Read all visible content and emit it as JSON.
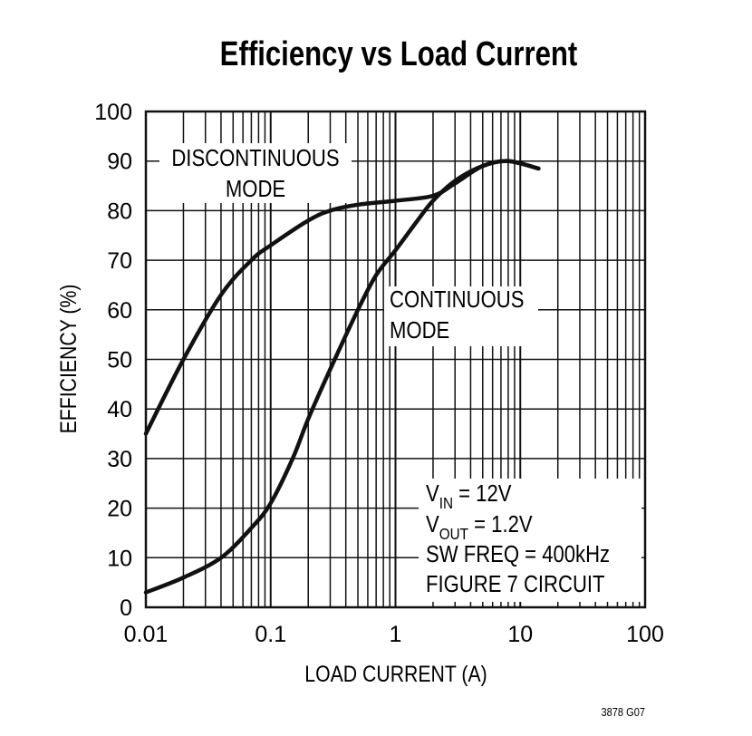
{
  "chart_data": {
    "type": "line",
    "title": "Efficiency vs Load Current",
    "xlabel": "LOAD CURRENT (A)",
    "ylabel": "EFFICIENCY (%)",
    "x_scale": "log",
    "xlim": [
      0.01,
      100
    ],
    "ylim": [
      0,
      100
    ],
    "x_ticks": [
      "0.01",
      "0.1",
      "1",
      "10",
      "100"
    ],
    "x_tick_values": [
      0.01,
      0.1,
      1,
      10,
      100
    ],
    "y_ticks": [
      "0",
      "10",
      "20",
      "30",
      "40",
      "50",
      "60",
      "70",
      "80",
      "90",
      "100"
    ],
    "grid": true,
    "line_color": "#111111",
    "series": [
      {
        "name": "DISCONTINUOUS MODE",
        "x": [
          0.01,
          0.02,
          0.04,
          0.07,
          0.1,
          0.2,
          0.3,
          0.5,
          1,
          2,
          3,
          5,
          8,
          14
        ],
        "y": [
          35,
          50,
          63,
          70,
          73,
          78,
          80,
          81.2,
          82,
          83,
          85.5,
          89,
          90,
          88.5
        ]
      },
      {
        "name": "CONTINUOUS MODE",
        "x": [
          0.01,
          0.02,
          0.04,
          0.07,
          0.1,
          0.15,
          0.2,
          0.3,
          0.5,
          0.7,
          1,
          1.5,
          2,
          3,
          5,
          8,
          14
        ],
        "y": [
          3,
          6,
          10,
          16,
          21,
          30,
          38,
          48,
          60,
          67,
          72,
          78,
          82,
          86,
          89,
          90,
          88.5
        ]
      }
    ],
    "annotations": {
      "discontinuous": [
        "DISCONTINUOUS",
        "MODE"
      ],
      "continuous": [
        "CONTINUOUS",
        "MODE"
      ],
      "conditions": {
        "vin": {
          "main": "V",
          "sub": "IN",
          "rest": " = 12V"
        },
        "vout": {
          "main": "V",
          "sub": "OUT",
          "rest": " = 1.2V"
        },
        "freq": "SW FREQ = 400kHz",
        "circuit": "FIGURE 7 CIRCUIT"
      }
    },
    "footer": "3878 G07"
  }
}
